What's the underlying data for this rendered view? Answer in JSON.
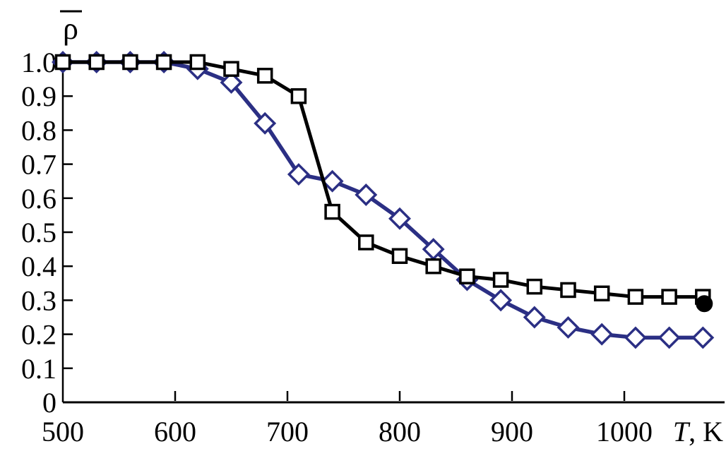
{
  "figure": {
    "background": "#ffffff"
  },
  "chart_data": {
    "type": "line",
    "title": "",
    "xlabel": "T, K",
    "xlabel_parts": {
      "symbol": "T",
      "unit": ", K"
    },
    "ylabel": "ρ̄",
    "ylabel_parts": {
      "symbol": "ρ",
      "overbar": true
    },
    "xlim": [
      500,
      1090
    ],
    "ylim": [
      0,
      1.0
    ],
    "grid": false,
    "legend": null,
    "xticks": [
      {
        "label": "500",
        "value": 500
      },
      {
        "label": "600",
        "value": 600
      },
      {
        "label": "700",
        "value": 700
      },
      {
        "label": "800",
        "value": 800
      },
      {
        "label": "900",
        "value": 900
      },
      {
        "label": "1000",
        "value": 1000
      }
    ],
    "yticks": [
      {
        "label": "1.0",
        "value": 1.0
      },
      {
        "label": "0.9",
        "value": 0.9
      },
      {
        "label": "0.8",
        "value": 0.8
      },
      {
        "label": "0.7",
        "value": 0.7
      },
      {
        "label": "0.6",
        "value": 0.6
      },
      {
        "label": "0.5",
        "value": 0.5
      },
      {
        "label": "0.4",
        "value": 0.4
      },
      {
        "label": "0.3",
        "value": 0.3
      },
      {
        "label": "0.2",
        "value": 0.2
      },
      {
        "label": "0.1",
        "value": 0.1
      },
      {
        "label": "0",
        "value": 0
      }
    ],
    "x": [
      500,
      530,
      560,
      590,
      620,
      650,
      680,
      710,
      740,
      770,
      800,
      830,
      860,
      890,
      920,
      950,
      980,
      1010,
      1040,
      1070
    ],
    "series": [
      {
        "name": "diamond-series",
        "marker": "diamond",
        "color": "#2b2f84",
        "values": [
          1.0,
          1.0,
          1.0,
          1.0,
          0.98,
          0.94,
          0.82,
          0.67,
          0.65,
          0.61,
          0.54,
          0.45,
          0.36,
          0.3,
          0.25,
          0.22,
          0.2,
          0.19,
          0.19,
          0.19
        ]
      },
      {
        "name": "square-series",
        "marker": "square",
        "color": "#000000",
        "values": [
          1.0,
          1.0,
          1.0,
          1.0,
          1.0,
          0.98,
          0.96,
          0.9,
          0.56,
          0.47,
          0.43,
          0.4,
          0.37,
          0.36,
          0.34,
          0.33,
          0.32,
          0.31,
          0.31,
          0.31
        ]
      }
    ],
    "end_point": {
      "x": 1070,
      "y": 0.29,
      "marker": "filled-circle",
      "color": "#000000"
    }
  }
}
